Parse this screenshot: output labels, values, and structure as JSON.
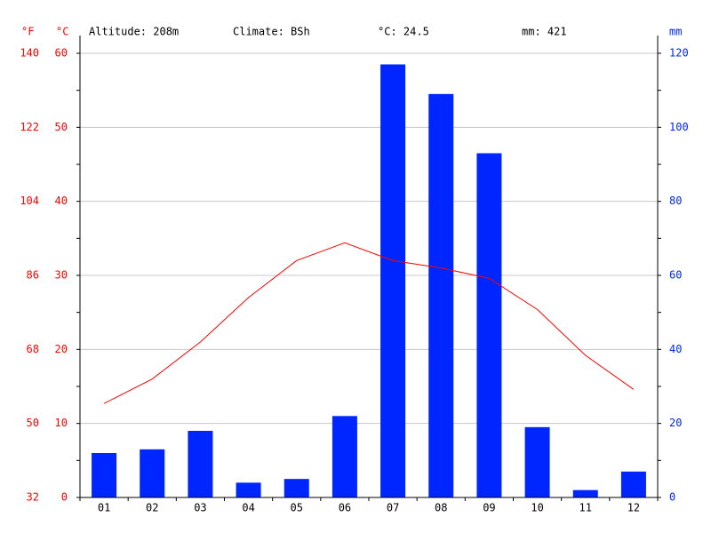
{
  "chart_data": {
    "type": "bar",
    "header": [
      "Altitude: 208m",
      "Climate: BSh",
      "°C: 24.5",
      "mm: 421"
    ],
    "f_label": "°F",
    "y_label": "°C",
    "y2_label": "mm",
    "categories": [
      "01",
      "02",
      "03",
      "04",
      "05",
      "06",
      "07",
      "08",
      "09",
      "10",
      "11",
      "12"
    ],
    "series": [
      {
        "type": "bar",
        "axis": "y2",
        "color": "#0026ff",
        "values": [
          12,
          13,
          18,
          4,
          5,
          22,
          117,
          109,
          93,
          19,
          2,
          7
        ]
      },
      {
        "type": "line",
        "color": "#ff0000",
        "values": [
          12.7,
          16.0,
          21.0,
          27.0,
          32.0,
          34.4,
          32.0,
          31.0,
          29.6,
          25.4,
          19.2,
          14.6
        ]
      }
    ],
    "ylim": [
      0,
      60
    ],
    "yticks": [
      0,
      10,
      20,
      30,
      40,
      50,
      60
    ],
    "y2lim": [
      0,
      120
    ],
    "y2ticks": [
      0,
      20,
      40,
      60,
      80,
      100,
      120
    ],
    "flim": [
      32,
      140
    ],
    "fticks": [
      32,
      50,
      68,
      86,
      104,
      122,
      140
    ],
    "grid": true
  }
}
